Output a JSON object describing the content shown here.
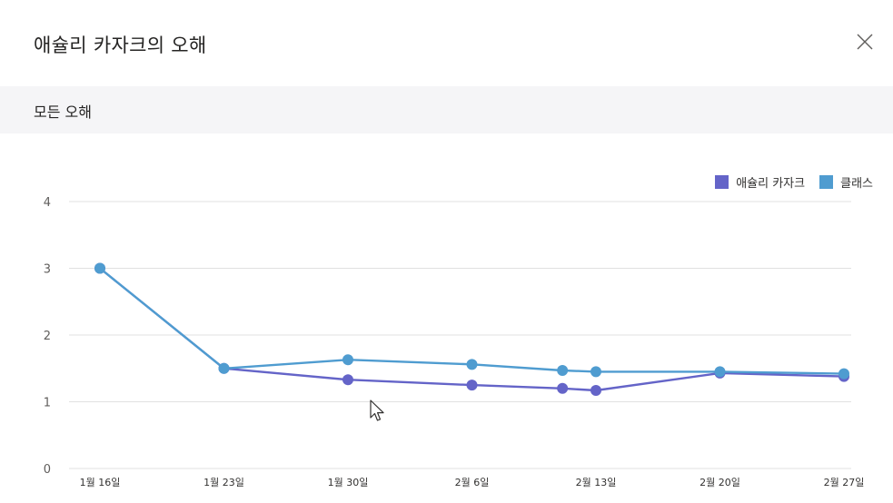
{
  "header": {
    "title": "애슐리 카자크의 오해",
    "close_icon": "close-icon"
  },
  "subheader": {
    "title": "모든 오해"
  },
  "colors": {
    "student": "#6464c8",
    "class": "#4f9cd0",
    "grid": "#e1e1e1",
    "axis_text": "#605e5c"
  },
  "chart_data": {
    "type": "line",
    "categories": [
      "1월 16일",
      "1월 23일",
      "1월 30일",
      "2월 6일",
      "2월 13일",
      "2월 20일",
      "2월 27일"
    ],
    "ylim": [
      0,
      4
    ],
    "yticks": [
      0,
      1,
      2,
      3,
      4
    ],
    "legend_position": "top-right",
    "grid": true,
    "series": [
      {
        "name": "애슐리 카자크",
        "color": "#6464c8",
        "points": [
          {
            "x": 0,
            "y": 3.0
          },
          {
            "x": 1,
            "y": 1.5
          },
          {
            "x": 2,
            "y": 1.33
          },
          {
            "x": 3,
            "y": 1.25
          },
          {
            "x": 3.73,
            "y": 1.2
          },
          {
            "x": 4,
            "y": 1.17
          },
          {
            "x": 5,
            "y": 1.43
          },
          {
            "x": 6,
            "y": 1.38
          }
        ]
      },
      {
        "name": "클래스",
        "color": "#4f9cd0",
        "points": [
          {
            "x": 0,
            "y": 3.0
          },
          {
            "x": 1,
            "y": 1.5
          },
          {
            "x": 2,
            "y": 1.63
          },
          {
            "x": 3,
            "y": 1.56
          },
          {
            "x": 3.73,
            "y": 1.47
          },
          {
            "x": 4,
            "y": 1.45
          },
          {
            "x": 5,
            "y": 1.45
          },
          {
            "x": 6,
            "y": 1.42
          }
        ]
      }
    ]
  }
}
